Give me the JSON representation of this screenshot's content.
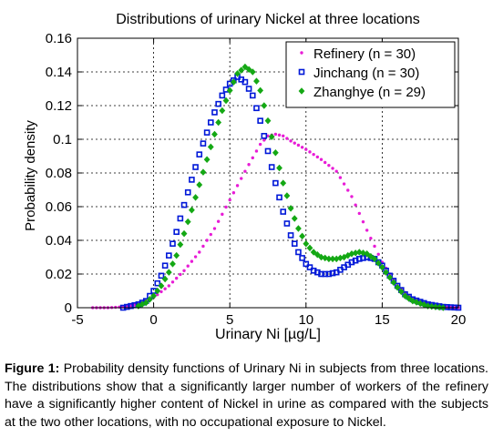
{
  "chart_data": {
    "type": "scatter",
    "title": "Distributions of urinary Nickel at three locations",
    "xlabel": "Urinary Ni [µg/L]",
    "ylabel": "Probability density",
    "xlim": [
      -5,
      20
    ],
    "ylim": [
      0,
      0.16
    ],
    "xticks": [
      -5,
      0,
      5,
      10,
      15,
      20
    ],
    "yticks": [
      0,
      0.02,
      0.04,
      0.06,
      0.08,
      0.1,
      0.12,
      0.14,
      0.16
    ],
    "xtick_labels": [
      "-5",
      "0",
      "5",
      "10",
      "15",
      "20"
    ],
    "ytick_labels": [
      "0",
      "0.02",
      "0.04",
      "0.06",
      "0.08",
      "0.1",
      "0.12",
      "0.14",
      "0.16"
    ],
    "grid": true,
    "legend_position": "top-right",
    "series": [
      {
        "name": "Refinery (n = 30)",
        "color": "#e81cd6",
        "marker": "dot",
        "points": [
          [
            -4,
            0.0
          ],
          [
            -3,
            0.0
          ],
          [
            -2,
            0.0005
          ],
          [
            -1,
            0.002
          ],
          [
            0,
            0.006
          ],
          [
            1,
            0.013
          ],
          [
            2,
            0.022
          ],
          [
            3,
            0.033
          ],
          [
            4,
            0.047
          ],
          [
            5,
            0.064
          ],
          [
            6,
            0.081
          ],
          [
            7,
            0.097
          ],
          [
            7.5,
            0.102
          ],
          [
            8,
            0.103
          ],
          [
            8.5,
            0.102
          ],
          [
            9,
            0.099
          ],
          [
            10,
            0.094
          ],
          [
            11,
            0.088
          ],
          [
            12,
            0.081
          ],
          [
            13,
            0.066
          ],
          [
            14,
            0.046
          ],
          [
            15,
            0.027
          ],
          [
            16,
            0.013
          ],
          [
            17,
            0.005
          ],
          [
            18,
            0.002
          ],
          [
            19,
            0.0005
          ],
          [
            20,
            0.0
          ]
        ]
      },
      {
        "name": "Jinchang (n = 30)",
        "color": "#0018d8",
        "marker": "square",
        "points": [
          [
            -2,
            0.0
          ],
          [
            -1,
            0.002
          ],
          [
            -0.5,
            0.004
          ],
          [
            0,
            0.01
          ],
          [
            0.5,
            0.019
          ],
          [
            1,
            0.031
          ],
          [
            1.5,
            0.045
          ],
          [
            2,
            0.061
          ],
          [
            2.5,
            0.076
          ],
          [
            3,
            0.091
          ],
          [
            3.5,
            0.104
          ],
          [
            4,
            0.116
          ],
          [
            4.5,
            0.126
          ],
          [
            5,
            0.133
          ],
          [
            5.5,
            0.137
          ],
          [
            6,
            0.134
          ],
          [
            6.5,
            0.126
          ],
          [
            7,
            0.111
          ],
          [
            7.5,
            0.093
          ],
          [
            8,
            0.074
          ],
          [
            8.5,
            0.057
          ],
          [
            9,
            0.043
          ],
          [
            9.5,
            0.033
          ],
          [
            10,
            0.026
          ],
          [
            10.5,
            0.022
          ],
          [
            11,
            0.02
          ],
          [
            11.5,
            0.02
          ],
          [
            12,
            0.021
          ],
          [
            12.5,
            0.024
          ],
          [
            13,
            0.027
          ],
          [
            13.5,
            0.029
          ],
          [
            14,
            0.03
          ],
          [
            14.5,
            0.029
          ],
          [
            15,
            0.025
          ],
          [
            15.5,
            0.019
          ],
          [
            16,
            0.013
          ],
          [
            16.5,
            0.008
          ],
          [
            17,
            0.005
          ],
          [
            18,
            0.002
          ],
          [
            19,
            0.0005
          ],
          [
            20,
            0.0
          ]
        ]
      },
      {
        "name": "Zhanghye (n = 29)",
        "color": "#14a814",
        "marker": "diamond",
        "points": [
          [
            -1,
            0.001
          ],
          [
            -0.5,
            0.003
          ],
          [
            0,
            0.007
          ],
          [
            0.5,
            0.013
          ],
          [
            1,
            0.021
          ],
          [
            1.5,
            0.031
          ],
          [
            2,
            0.044
          ],
          [
            2.5,
            0.058
          ],
          [
            3,
            0.073
          ],
          [
            3.5,
            0.088
          ],
          [
            4,
            0.103
          ],
          [
            4.5,
            0.117
          ],
          [
            5,
            0.129
          ],
          [
            5.5,
            0.139
          ],
          [
            6,
            0.143
          ],
          [
            6.5,
            0.14
          ],
          [
            7,
            0.129
          ],
          [
            7.5,
            0.111
          ],
          [
            8,
            0.092
          ],
          [
            8.5,
            0.074
          ],
          [
            9,
            0.059
          ],
          [
            9.5,
            0.047
          ],
          [
            10,
            0.038
          ],
          [
            10.5,
            0.033
          ],
          [
            11,
            0.03
          ],
          [
            11.5,
            0.029
          ],
          [
            12,
            0.029
          ],
          [
            12.5,
            0.03
          ],
          [
            13,
            0.032
          ],
          [
            13.5,
            0.033
          ],
          [
            14,
            0.032
          ],
          [
            14.5,
            0.029
          ],
          [
            15,
            0.024
          ],
          [
            15.5,
            0.018
          ],
          [
            16,
            0.012
          ],
          [
            16.5,
            0.007
          ],
          [
            17,
            0.004
          ],
          [
            18,
            0.001
          ],
          [
            19,
            0.0
          ]
        ]
      }
    ]
  },
  "caption": {
    "label": "Figure 1:",
    "text": " Probability density functions of Urinary Ni in subjects from three locations. The distributions show that a significantly larger number of workers of the refinery have a significantly higher content of Nickel in urine as compared with the subjects at the two other locations, with no occupational exposure to Nickel."
  }
}
